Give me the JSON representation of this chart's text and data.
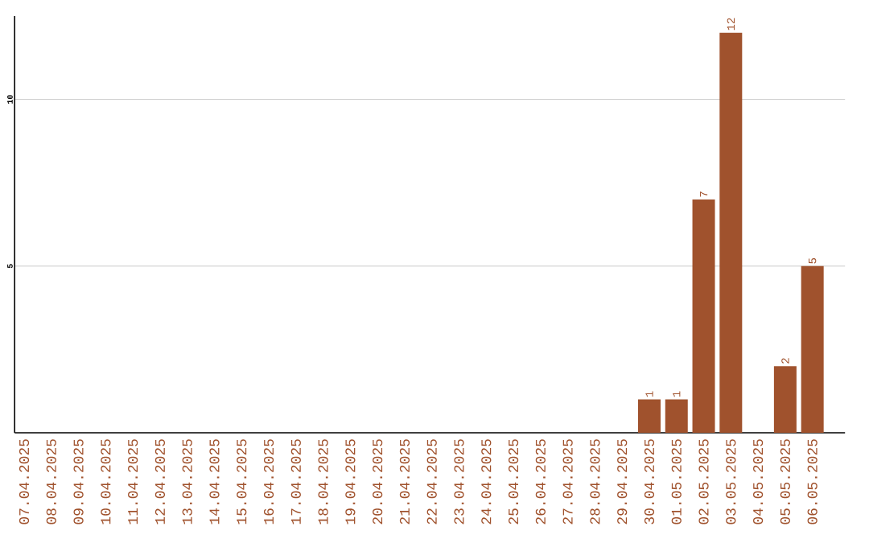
{
  "chart_data": {
    "type": "bar",
    "categories": [
      "07.04.2025",
      "08.04.2025",
      "09.04.2025",
      "10.04.2025",
      "11.04.2025",
      "12.04.2025",
      "13.04.2025",
      "14.04.2025",
      "15.04.2025",
      "16.04.2025",
      "17.04.2025",
      "18.04.2025",
      "19.04.2025",
      "20.04.2025",
      "21.04.2025",
      "22.04.2025",
      "23.04.2025",
      "24.04.2025",
      "25.04.2025",
      "26.04.2025",
      "27.04.2025",
      "28.04.2025",
      "29.04.2025",
      "30.04.2025",
      "01.05.2025",
      "02.05.2025",
      "03.05.2025",
      "04.05.2025",
      "05.05.2025",
      "06.05.2025"
    ],
    "values": [
      0,
      0,
      0,
      0,
      0,
      0,
      0,
      0,
      0,
      0,
      0,
      0,
      0,
      0,
      0,
      0,
      0,
      0,
      0,
      0,
      0,
      0,
      0,
      1,
      1,
      7,
      12,
      0,
      2,
      5
    ],
    "value_labels": [
      null,
      null,
      null,
      null,
      null,
      null,
      null,
      null,
      null,
      null,
      null,
      null,
      null,
      null,
      null,
      null,
      null,
      null,
      null,
      null,
      null,
      null,
      null,
      "1",
      "1",
      "7",
      "12",
      null,
      "2",
      "5"
    ],
    "color": "#a0522d",
    "ylim": [
      0,
      12.5
    ],
    "yticks": [
      5,
      10
    ],
    "grid": "y"
  }
}
